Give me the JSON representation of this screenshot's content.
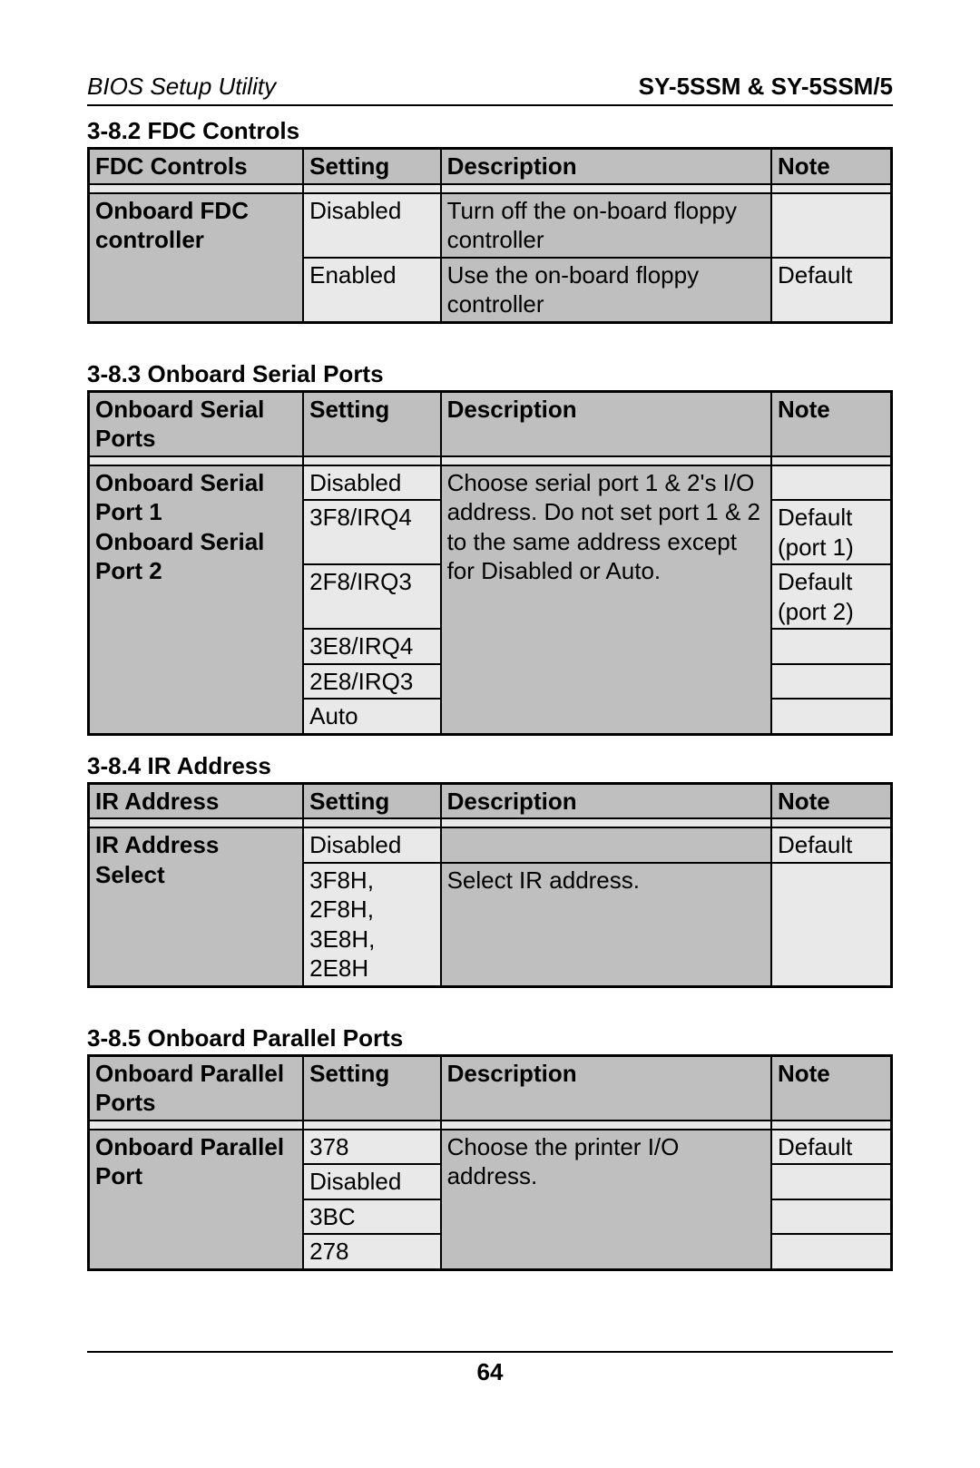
{
  "header": {
    "left": "BIOS Setup Utility",
    "right": "SY-5SSM & SY-5SSM/5"
  },
  "footer": {
    "page": "64"
  },
  "colors": {
    "dark_gray": "#bfbfbf",
    "light_gray": "#e9e9e9",
    "border": "#000000",
    "background": "#ffffff"
  },
  "sections": {
    "fdc": {
      "title": "3-8.2  FDC Controls",
      "headers": [
        "FDC Controls",
        "Setting",
        "Description",
        "Note"
      ],
      "name_lines": [
        "Onboard FDC",
        "controller"
      ],
      "rows": [
        {
          "setting": "Disabled",
          "desc": "Turn off the on-board floppy controller",
          "note": ""
        },
        {
          "setting": "Enabled",
          "desc": "Use the on-board floppy controller",
          "note": "Default"
        }
      ]
    },
    "serial": {
      "title": "3-8.3  Onboard Serial Ports",
      "headers": [
        "Onboard Serial Ports",
        "Setting",
        "Description",
        "Note"
      ],
      "name_lines": [
        "Onboard Serial",
        "Port 1",
        "Onboard Serial",
        "Port 2"
      ],
      "desc_block": [
        "Choose serial port 1 & 2's I/O address.",
        "Do not set port 1 & 2 to the same address except for Disabled or Auto."
      ],
      "rows": [
        {
          "setting": "Disabled",
          "note": ""
        },
        {
          "setting": "3F8/IRQ4",
          "note": "Default (port 1)"
        },
        {
          "setting": "2F8/IRQ3",
          "note": "Default (port 2)"
        },
        {
          "setting": "3E8/IRQ4",
          "note": ""
        },
        {
          "setting": "2E8/IRQ3",
          "note": ""
        },
        {
          "setting": "Auto",
          "note": ""
        }
      ]
    },
    "ir": {
      "title": "3-8.4  IR Address",
      "headers": [
        "IR Address",
        "Setting",
        "Description",
        "Note"
      ],
      "name_lines": [
        "IR Address",
        "Select"
      ],
      "rows": [
        {
          "setting": "Disabled",
          "desc": "",
          "note": "Default"
        },
        {
          "setting": "3F8H, 2F8H, 3E8H, 2E8H",
          "desc": "Select IR address.",
          "note": ""
        }
      ]
    },
    "parallel": {
      "title": "3-8.5  Onboard Parallel Ports",
      "headers": [
        "Onboard Parallel Ports",
        "Setting",
        "Description",
        "Note"
      ],
      "name_lines": [
        "Onboard Parallel",
        "Port"
      ],
      "desc_block": "Choose the printer I/O address.",
      "rows": [
        {
          "setting": "378",
          "note": "Default"
        },
        {
          "setting": "Disabled",
          "note": ""
        },
        {
          "setting": "3BC",
          "note": ""
        },
        {
          "setting": "278",
          "note": ""
        }
      ]
    }
  }
}
